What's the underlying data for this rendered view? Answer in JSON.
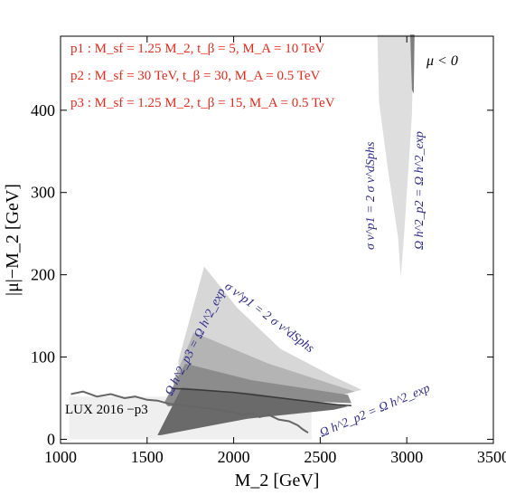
{
  "chart_data": {
    "type": "area",
    "xlabel": "M_2 [GeV]",
    "ylabel": "|μ|−M_2 [GeV]",
    "xlim": [
      1000,
      3500
    ],
    "ylim": [
      -5,
      490
    ],
    "x_ticks": [
      1000,
      1500,
      2000,
      2500,
      3000,
      3500
    ],
    "y_ticks": [
      0,
      100,
      200,
      300,
      400
    ],
    "x_tick_labels": [
      "1000",
      "1500",
      "2000",
      "2500",
      "3000",
      "3500"
    ],
    "y_tick_labels": [
      "0",
      "100",
      "200",
      "300",
      "400"
    ],
    "grid": false,
    "legend_text": [
      "p1 : M_sf = 1.25 M_2, t_β = 5, M_A = 10 TeV",
      "p2 : M_sf = 30 TeV, t_β = 30, M_A = 0.5 TeV",
      "p3 : M_sf = 1.25 M_2, t_β = 15, M_A = 0.5 TeV"
    ],
    "legend_color": "#e8291b",
    "legend_placement": "top-left",
    "corner_label": "μ < 0",
    "annotations": {
      "sigma_p1_upper": "σ v^p1 = 2 σ v^dSphs",
      "omega_p2_upper": "Ω h^2_p2 = Ω h^2_exp",
      "sigma_p1_lower": "σ v^p1 = 2 σ v^dSphs",
      "omega_p3": "Ω h^2_p3 = Ω h^2_exp",
      "omega_p2_lower": "Ω h^2_p2 = Ω h^2_exp",
      "lux": "LUX 2016 −p3"
    },
    "annotation_color": "#2b2a8c",
    "regions": [
      {
        "id": "lux-band",
        "fill": "#efefef",
        "points": [
          [
            1050,
            0
          ],
          [
            2450,
            0
          ],
          [
            2450,
            52
          ],
          [
            1050,
            52
          ]
        ]
      },
      {
        "id": "upper-light",
        "fill": "#dedede",
        "points": [
          [
            2830,
            492
          ],
          [
            3040,
            492
          ],
          [
            3030,
            395
          ],
          [
            2985,
            250
          ],
          [
            2965,
            197
          ],
          [
            2950,
            245
          ],
          [
            2890,
            330
          ],
          [
            2840,
            410
          ]
        ]
      },
      {
        "id": "upper-dark",
        "fill": "#7e7e7e",
        "points": [
          [
            3020,
            492
          ],
          [
            3045,
            492
          ],
          [
            3040,
            420
          ],
          [
            3030,
            425
          ]
        ]
      },
      {
        "id": "lower-light",
        "fill": "#d7d7d7",
        "points": [
          [
            1680,
            95
          ],
          [
            1830,
            210
          ],
          [
            2020,
            160
          ],
          [
            2270,
            110
          ],
          [
            2560,
            78
          ],
          [
            2740,
            60
          ],
          [
            2350,
            42
          ],
          [
            1700,
            58
          ]
        ]
      },
      {
        "id": "lower-mid",
        "fill": "#b4b4b4",
        "points": [
          [
            1650,
            70
          ],
          [
            1770,
            130
          ],
          [
            2200,
            92
          ],
          [
            2700,
            58
          ],
          [
            2450,
            44
          ],
          [
            1680,
            48
          ]
        ]
      },
      {
        "id": "lower-dark",
        "fill": "#8c8c8c",
        "points": [
          [
            1600,
            45
          ],
          [
            1720,
            92
          ],
          [
            2100,
            72
          ],
          [
            2660,
            54
          ],
          [
            2680,
            44
          ],
          [
            2160,
            48
          ],
          [
            1620,
            40
          ]
        ]
      },
      {
        "id": "lower-darkest",
        "fill": "#6a6a6a",
        "points": [
          [
            1560,
            5
          ],
          [
            1700,
            63
          ],
          [
            2100,
            56
          ],
          [
            2660,
            40
          ],
          [
            2580,
            36
          ],
          [
            2080,
            25
          ],
          [
            1580,
            5
          ]
        ]
      }
    ],
    "series": [
      {
        "name": "LUX 2016 −p3",
        "color": "#666666",
        "x": [
          1060,
          1130,
          1210,
          1290,
          1370,
          1430,
          1500,
          1560,
          1630,
          1700,
          1760,
          1820,
          1880,
          1930,
          1990,
          2050,
          2100,
          2150,
          2200,
          2260,
          2320,
          2370,
          2400,
          2430
        ],
        "y": [
          55,
          58,
          52,
          55,
          50,
          52,
          48,
          47,
          43,
          42,
          40,
          38,
          37,
          35,
          33,
          30,
          32,
          27,
          30,
          24,
          22,
          17,
          12,
          8
        ]
      }
    ],
    "dark_line": {
      "color": "#3a3a3a",
      "x": [
        1640,
        1800,
        2000,
        2200,
        2400,
        2600,
        2680
      ],
      "y": [
        62,
        60,
        57,
        52,
        47,
        42,
        41
      ]
    }
  }
}
